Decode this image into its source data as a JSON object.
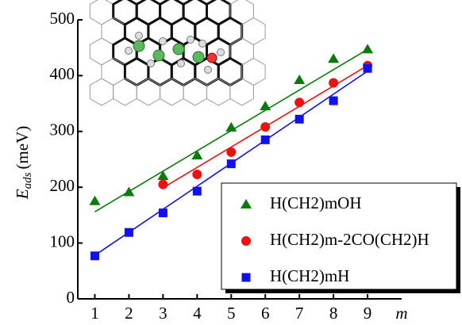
{
  "chart_data": {
    "type": "scatter",
    "ylabel": "E",
    "ylabel_sub": "ads",
    "ylabel_unit": "(meV)",
    "xlabel": "m",
    "xlim": [
      0.5,
      10
    ],
    "xticks": [
      1,
      2,
      3,
      4,
      5,
      6,
      7,
      8,
      9
    ],
    "ylim": [
      0,
      500
    ],
    "yticks": [
      0,
      100,
      200,
      300,
      400,
      500
    ],
    "series": [
      {
        "name": "H(CH2)mOH",
        "color": "#0a7a0a",
        "marker": "triangle",
        "x": [
          1,
          2,
          3,
          4,
          5,
          6,
          7,
          8,
          9
        ],
        "values": [
          175,
          191,
          220,
          257,
          307,
          345,
          392,
          430,
          447
        ],
        "fit": {
          "x": [
            1,
            9
          ],
          "values": [
            156,
            447
          ]
        }
      },
      {
        "name": "H(CH2)m-2CO(CH2)H",
        "color": "#ee1111",
        "marker": "circle",
        "x": [
          3,
          4,
          5,
          6,
          7,
          8,
          9
        ],
        "values": [
          205,
          223,
          263,
          308,
          352,
          387,
          418
        ],
        "fit": {
          "x": [
            3,
            9
          ],
          "values": [
            199,
            418
          ]
        }
      },
      {
        "name": "H(CH2)mH",
        "color": "#1111ee",
        "marker": "square",
        "x": [
          1,
          2,
          3,
          4,
          5,
          6,
          7,
          8,
          9
        ],
        "values": [
          77,
          119,
          154,
          193,
          242,
          285,
          322,
          355,
          413
        ],
        "fit": {
          "x": [
            1,
            9
          ],
          "values": [
            78,
            408
          ]
        }
      }
    ]
  }
}
